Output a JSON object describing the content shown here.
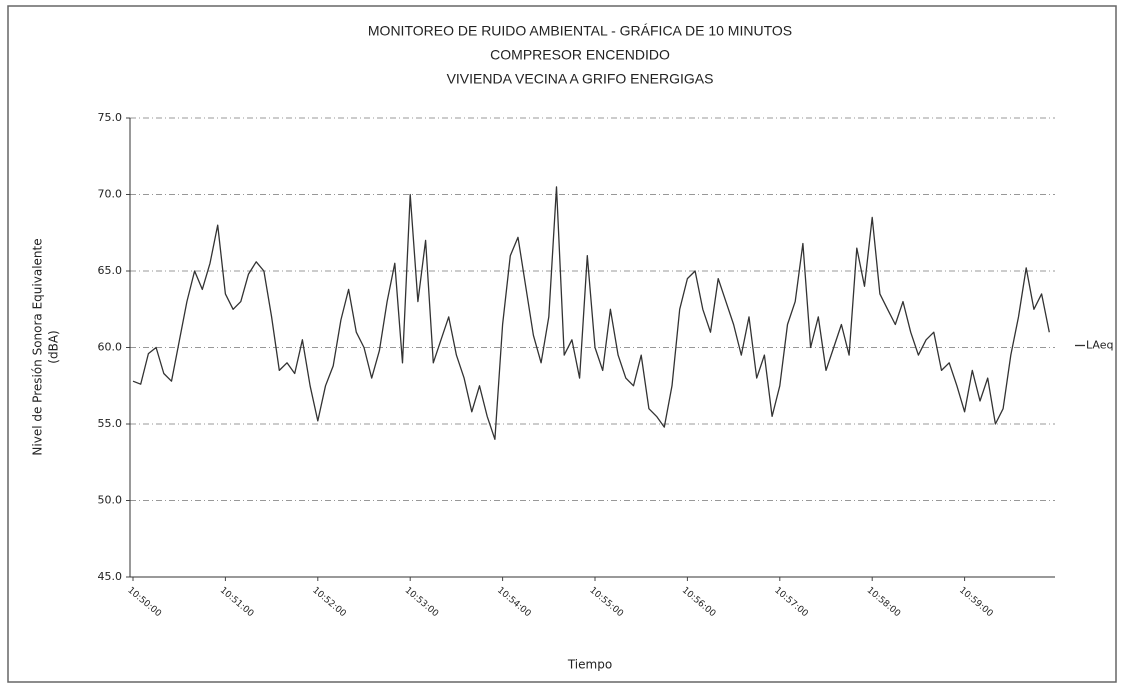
{
  "chart_data": {
    "type": "line",
    "title": "MONITOREO DE RUIDO AMBIENTAL -  GRÁFICA DE 10 MINUTOS",
    "subtitle": [
      "COMPRESOR ENCENDIDO",
      "VIVIENDA VECINA A GRIFO ENERGIGAS"
    ],
    "y_label": [
      "Nivel de Presión Sonora Equivalente",
      "(dBA)"
    ],
    "x_label": "Tiempo",
    "categories": [
      "10:50:00",
      null,
      null,
      null,
      null,
      null,
      null,
      null,
      null,
      null,
      null,
      null,
      "10:51:00",
      null,
      null,
      null,
      null,
      null,
      null,
      null,
      null,
      null,
      null,
      null,
      "10:52:00",
      null,
      null,
      null,
      null,
      null,
      null,
      null,
      null,
      null,
      null,
      null,
      "10:53:00",
      null,
      null,
      null,
      null,
      null,
      null,
      null,
      null,
      null,
      null,
      null,
      "10:54:00",
      null,
      null,
      null,
      null,
      null,
      null,
      null,
      null,
      null,
      null,
      null,
      "10:55:00",
      null,
      null,
      null,
      null,
      null,
      null,
      null,
      null,
      null,
      null,
      null,
      "10:56:00",
      null,
      null,
      null,
      null,
      null,
      null,
      null,
      null,
      null,
      null,
      null,
      "10:57:00",
      null,
      null,
      null,
      null,
      null,
      null,
      null,
      null,
      null,
      null,
      null,
      "10:58:00",
      null,
      null,
      null,
      null,
      null,
      null,
      null,
      null,
      null,
      null,
      null,
      "10:59:00",
      null,
      null,
      null,
      null,
      null,
      null,
      null,
      null,
      null,
      null,
      null
    ],
    "series": [
      {
        "name": "LAeq",
        "color": "#333333",
        "values": [
          57.8,
          57.6,
          59.6,
          60.0,
          58.3,
          57.8,
          60.4,
          63.0,
          65.0,
          63.8,
          65.5,
          68.0,
          63.5,
          62.5,
          63.0,
          64.8,
          65.6,
          65.0,
          62.0,
          58.5,
          59.0,
          58.3,
          60.5,
          57.5,
          55.2,
          57.5,
          58.8,
          61.8,
          63.8,
          61.0,
          60.0,
          58.0,
          59.8,
          63.0,
          65.5,
          59.0,
          70.0,
          63.0,
          67.0,
          59.0,
          60.5,
          62.0,
          59.5,
          58.0,
          55.8,
          57.5,
          55.5,
          54.0,
          61.5,
          66.0,
          67.2,
          64.0,
          60.8,
          59.0,
          62.0,
          70.5,
          59.5,
          60.5,
          58.0,
          66.0,
          60.0,
          58.5,
          62.5,
          59.5,
          58.0,
          57.5,
          59.5,
          56.0,
          55.5,
          54.8,
          57.5,
          62.5,
          64.5,
          65.0,
          62.5,
          61.0,
          64.5,
          63.0,
          61.5,
          59.5,
          62.0,
          58.0,
          59.5,
          55.5,
          57.5,
          61.5,
          63.0,
          66.8,
          60.0,
          62.0,
          58.5,
          60.0,
          61.5,
          59.5,
          66.5,
          64.0,
          68.5,
          63.5,
          62.5,
          61.5,
          63.0,
          61.0,
          59.5,
          60.5,
          61.0,
          58.5,
          59.0,
          57.5,
          55.8,
          58.5,
          56.5,
          58.0,
          55.0,
          56.0,
          59.5,
          62.0,
          65.2,
          62.5,
          63.5,
          61.0
        ]
      }
    ],
    "ylim": [
      45,
      75
    ],
    "yticks": [
      {
        "value": 45,
        "label": "45.0"
      },
      {
        "value": 50,
        "label": "50.0"
      },
      {
        "value": 55,
        "label": "55.0"
      },
      {
        "value": 60,
        "label": "60.0"
      },
      {
        "value": 65,
        "label": "65.0"
      },
      {
        "value": 70,
        "label": "70.0"
      },
      {
        "value": 75,
        "label": "75.0"
      }
    ],
    "grid": true,
    "legend": "right"
  }
}
